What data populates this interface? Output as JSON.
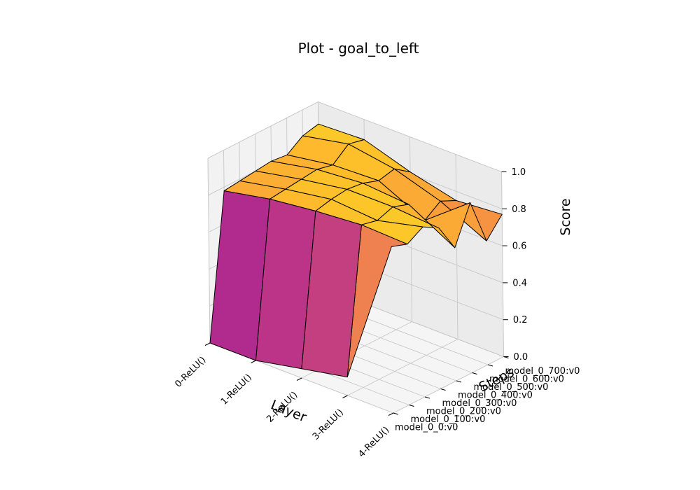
{
  "chart_data": {
    "type": "surface3d",
    "title": "Plot - goal_to_left",
    "xlabel": "Layer",
    "ylabel": "Steps",
    "zlabel": "Score",
    "x_categories": [
      "0-ReLU()",
      "1-ReLU()",
      "2-ReLU()",
      "3-ReLU()",
      "4-ReLU()"
    ],
    "y_categories": [
      "model_0_0:v0",
      "model_0_100:v0",
      "model_0_200:v0",
      "model_0_300:v0",
      "model_0_400:v0",
      "model_0_500:v0",
      "model_0_600:v0",
      "model_0_700:v0"
    ],
    "z_ticks": [
      "0.0",
      "0.2",
      "0.4",
      "0.6",
      "0.8",
      "1.0"
    ],
    "zlim": [
      0,
      1
    ],
    "colormap": "plasma",
    "edge_color": "#000000",
    "values": [
      [
        0.0,
        0.0,
        0.05,
        0.1,
        0.9
      ],
      [
        0.78,
        0.83,
        0.86,
        0.88,
        0.87
      ],
      [
        0.79,
        0.84,
        0.88,
        0.86,
        0.92
      ],
      [
        0.8,
        0.85,
        0.89,
        0.89,
        0.87
      ],
      [
        0.81,
        0.86,
        0.88,
        0.86,
        0.72
      ],
      [
        0.8,
        0.84,
        0.85,
        0.73,
        0.92
      ],
      [
        0.86,
        0.91,
        0.87,
        0.79,
        0.67
      ],
      [
        0.88,
        0.89,
        0.81,
        0.75,
        0.77
      ]
    ],
    "grid": true
  }
}
